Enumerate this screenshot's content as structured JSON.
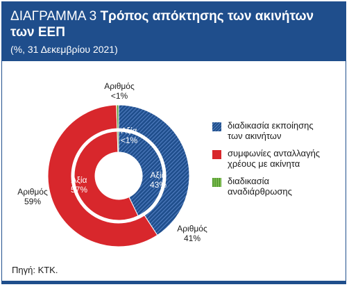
{
  "title": {
    "prefix": "ΔΙΑΓΡΑΜΜΑ 3",
    "main_line1": "Τρόπος απόκτησης των ακινήτων",
    "main_line2": "των ΕΕΠ"
  },
  "subtitle": "(%, 31 Δεκεμβρίου 2021)",
  "source": "Πηγή: ΚΤΚ.",
  "colors": {
    "blue": "#1f4e8c",
    "red": "#d8272c",
    "green": "#4f9a2c",
    "header": "#1f4e8c"
  },
  "chart_data": {
    "type": "pie",
    "variant": "nested-donut",
    "categories": [
      "διαδικασία εκποίησης των ακινήτων",
      "συμφωνίες ανταλλαγής χρέους με ακίνητα",
      "διαδικασία αναδιάρθρωσης"
    ],
    "series": [
      {
        "name": "Αριθμός",
        "ring": "outer",
        "values": [
          41,
          59,
          0.5
        ]
      },
      {
        "name": "Αξία",
        "ring": "inner",
        "values": [
          43,
          57,
          0.5
        ]
      }
    ],
    "labels": {
      "outer": [
        {
          "name": "Αριθμός",
          "value": "41%"
        },
        {
          "name": "Αριθμός",
          "value": "59%"
        },
        {
          "name": "Αριθμός",
          "value": "<1%"
        }
      ],
      "inner": [
        {
          "name": "Αξία",
          "value": "43%"
        },
        {
          "name": "Αξία",
          "value": "57%"
        },
        {
          "name": "Αξία",
          "value": "<1%"
        }
      ]
    },
    "legend": {
      "placement": "right",
      "items": [
        {
          "line1": "διαδικασία εκποίησης",
          "line2": "των ακινήτων",
          "color": "#1f4e8c"
        },
        {
          "line1": "συμφωνίες ανταλλαγής",
          "line2": "χρέους με ακίνητα",
          "color": "#d8272c"
        },
        {
          "line1": "διαδικασία",
          "line2": "αναδιάρθρωσης",
          "color": "#4f9a2c"
        }
      ]
    }
  }
}
